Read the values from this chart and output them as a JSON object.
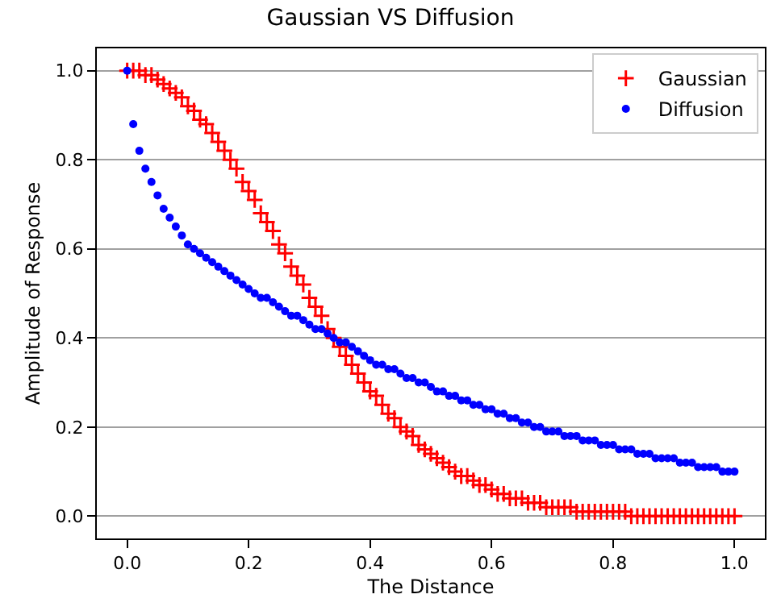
{
  "chart_data": {
    "type": "scatter",
    "title": "Gaussian VS Diffusion",
    "xlabel": "The Distance",
    "ylabel": "Amplitude of Response",
    "x": [
      0,
      0.01,
      0.02,
      0.03,
      0.04,
      0.05,
      0.06,
      0.07,
      0.08,
      0.09,
      0.1,
      0.11,
      0.12,
      0.13,
      0.14,
      0.15,
      0.16,
      0.17,
      0.18,
      0.19,
      0.2,
      0.21,
      0.22,
      0.23,
      0.24,
      0.25,
      0.26,
      0.27,
      0.28,
      0.29,
      0.3,
      0.31,
      0.32,
      0.33,
      0.34,
      0.35,
      0.36,
      0.37,
      0.38,
      0.39,
      0.4,
      0.41,
      0.42,
      0.43,
      0.44,
      0.45,
      0.46,
      0.47,
      0.48,
      0.49,
      0.5,
      0.51,
      0.52,
      0.53,
      0.54,
      0.55,
      0.56,
      0.57,
      0.58,
      0.59,
      0.6,
      0.61,
      0.62,
      0.63,
      0.64,
      0.65,
      0.66,
      0.67,
      0.68,
      0.69,
      0.7,
      0.71,
      0.72,
      0.73,
      0.74,
      0.75,
      0.76,
      0.77,
      0.78,
      0.79,
      0.8,
      0.81,
      0.82,
      0.83,
      0.84,
      0.85,
      0.86,
      0.87,
      0.88,
      0.89,
      0.9,
      0.91,
      0.92,
      0.93,
      0.94,
      0.95,
      0.96,
      0.97,
      0.98,
      0.99,
      1.0
    ],
    "series": [
      {
        "name": "Gaussian",
        "color": "#ff0000",
        "marker": "cross",
        "values": [
          1.0,
          1.0,
          1.0,
          0.99,
          0.99,
          0.98,
          0.97,
          0.96,
          0.95,
          0.94,
          0.92,
          0.91,
          0.89,
          0.88,
          0.86,
          0.84,
          0.82,
          0.8,
          0.78,
          0.75,
          0.73,
          0.71,
          0.68,
          0.66,
          0.64,
          0.61,
          0.59,
          0.56,
          0.54,
          0.52,
          0.49,
          0.47,
          0.45,
          0.42,
          0.4,
          0.38,
          0.36,
          0.34,
          0.32,
          0.3,
          0.28,
          0.27,
          0.25,
          0.23,
          0.22,
          0.2,
          0.19,
          0.18,
          0.16,
          0.15,
          0.14,
          0.13,
          0.12,
          0.11,
          0.1,
          0.09,
          0.09,
          0.08,
          0.07,
          0.07,
          0.06,
          0.05,
          0.05,
          0.04,
          0.04,
          0.04,
          0.03,
          0.03,
          0.03,
          0.02,
          0.02,
          0.02,
          0.02,
          0.02,
          0.01,
          0.01,
          0.01,
          0.01,
          0.01,
          0.01,
          0.01,
          0.01,
          0.01,
          0.0,
          0.0,
          0.0,
          0.0,
          0.0,
          0.0,
          0.0,
          0.0,
          0.0,
          0.0,
          0.0,
          0.0,
          0.0,
          0.0,
          0.0,
          0.0,
          0.0,
          0.0
        ]
      },
      {
        "name": "Diffusion",
        "color": "#0000ff",
        "marker": "circle",
        "values": [
          1.0,
          0.88,
          0.82,
          0.78,
          0.75,
          0.72,
          0.69,
          0.67,
          0.65,
          0.63,
          0.61,
          0.6,
          0.59,
          0.58,
          0.57,
          0.56,
          0.55,
          0.54,
          0.53,
          0.52,
          0.51,
          0.5,
          0.49,
          0.49,
          0.48,
          0.47,
          0.46,
          0.45,
          0.45,
          0.44,
          0.43,
          0.42,
          0.42,
          0.41,
          0.4,
          0.39,
          0.39,
          0.38,
          0.37,
          0.36,
          0.35,
          0.34,
          0.34,
          0.33,
          0.33,
          0.32,
          0.31,
          0.31,
          0.3,
          0.3,
          0.29,
          0.28,
          0.28,
          0.27,
          0.27,
          0.26,
          0.26,
          0.25,
          0.25,
          0.24,
          0.24,
          0.23,
          0.23,
          0.22,
          0.22,
          0.21,
          0.21,
          0.2,
          0.2,
          0.19,
          0.19,
          0.19,
          0.18,
          0.18,
          0.18,
          0.17,
          0.17,
          0.17,
          0.16,
          0.16,
          0.16,
          0.15,
          0.15,
          0.15,
          0.14,
          0.14,
          0.14,
          0.13,
          0.13,
          0.13,
          0.13,
          0.12,
          0.12,
          0.12,
          0.11,
          0.11,
          0.11,
          0.11,
          0.1,
          0.1,
          0.1
        ]
      }
    ],
    "xlim": [
      -0.05,
      1.05
    ],
    "ylim": [
      -0.05,
      1.05
    ],
    "xticks": [
      {
        "value": 0,
        "label": "0.0"
      },
      0.2,
      0.4,
      0.6,
      0.8,
      {
        "value": 1,
        "label": "1.0"
      }
    ],
    "yticks": [
      {
        "value": 0,
        "label": "0.0"
      },
      0.2,
      0.4,
      0.6,
      0.8,
      {
        "value": 1,
        "label": "1.0"
      }
    ],
    "grid": "y",
    "legend": "top right"
  }
}
